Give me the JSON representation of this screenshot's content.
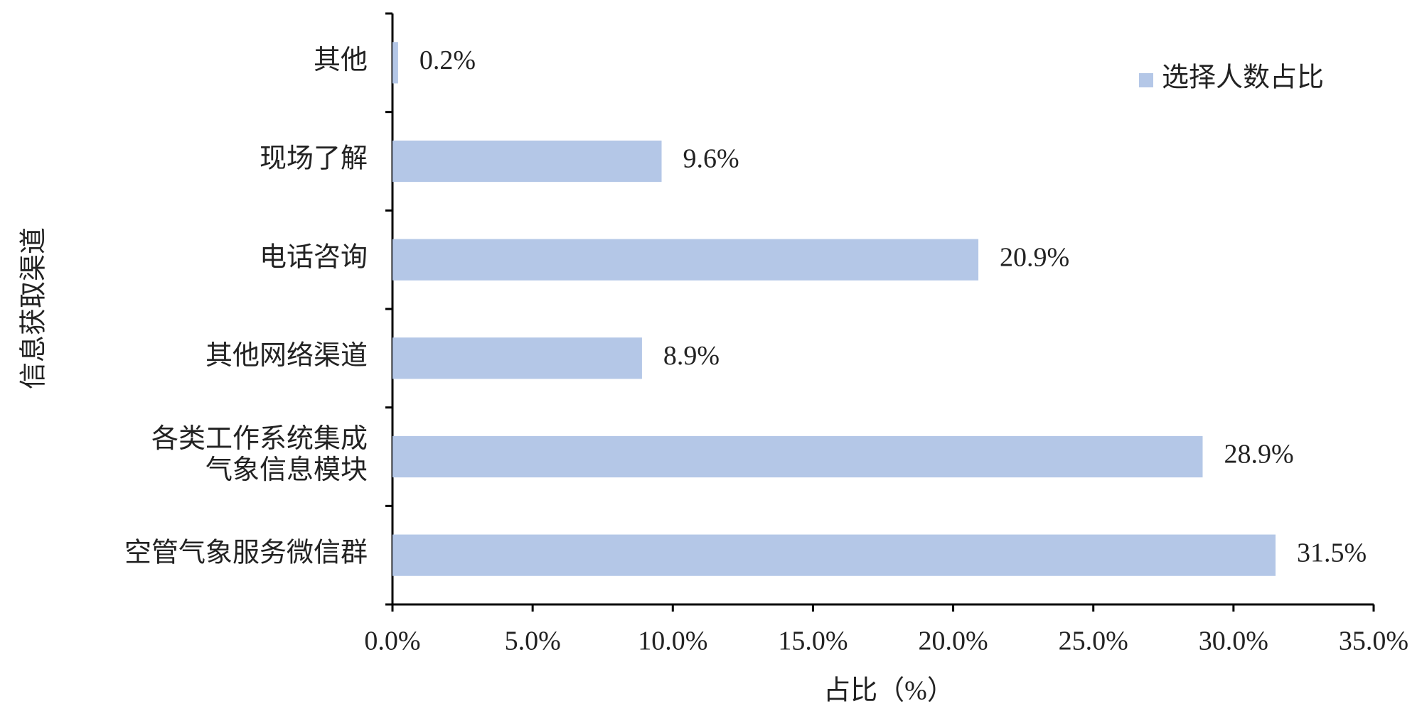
{
  "chart_data": {
    "type": "bar",
    "orientation": "horizontal",
    "categories": [
      "其他",
      "现场了解",
      "电话咨询",
      "其他网络渠道",
      "各类工作系统集成\n气象信息模块",
      "空管气象服务微信群"
    ],
    "series": [
      {
        "name": "选择人数占比",
        "color": "#b4c7e7",
        "values": [
          0.2,
          9.6,
          20.9,
          8.9,
          28.9,
          31.5
        ],
        "value_labels": [
          "0.2%",
          "9.6%",
          "20.9%",
          "8.9%",
          "28.9%",
          "31.5%"
        ]
      }
    ],
    "xlim": [
      0,
      35
    ],
    "xticks": [
      {
        "value": 0,
        "label": "0.0%"
      },
      {
        "value": 5,
        "label": "5.0%"
      },
      {
        "value": 10,
        "label": "10.0%"
      },
      {
        "value": 15,
        "label": "15.0%"
      },
      {
        "value": 20,
        "label": "20.0%"
      },
      {
        "value": 25,
        "label": "25.0%"
      },
      {
        "value": 30,
        "label": "30.0%"
      },
      {
        "value": 35,
        "label": "35.0%"
      }
    ],
    "x_label": "占比（%）",
    "y_label": "信息获取渠道",
    "legend": "upper right"
  }
}
